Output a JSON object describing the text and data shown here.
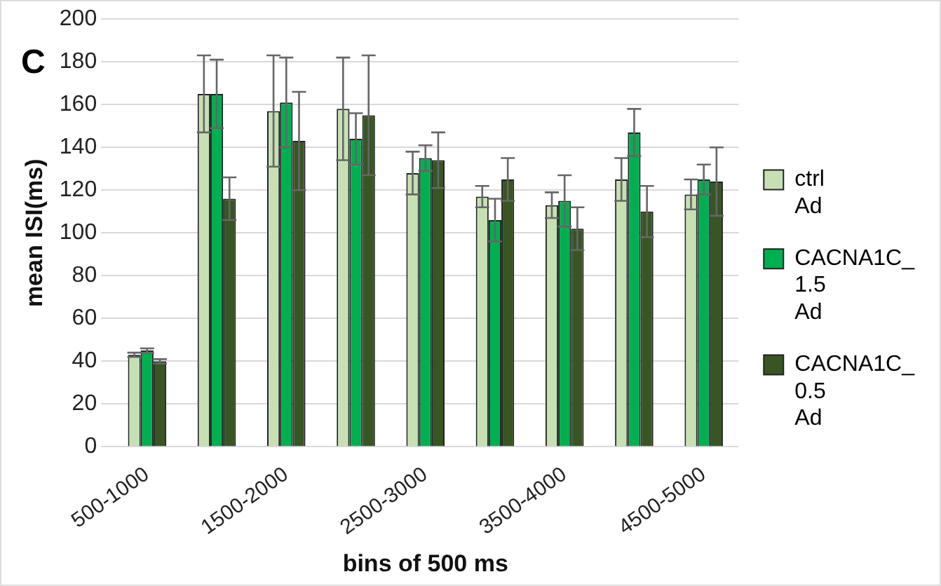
{
  "chart_data": {
    "type": "bar",
    "title": "C",
    "xlabel": "bins of 500 ms",
    "ylabel": "mean ISI(ms)",
    "categories": [
      "500-1000",
      null,
      "1500-2000",
      null,
      "2500-3000",
      null,
      "3500-4000",
      null,
      "4500-5000"
    ],
    "series": [
      {
        "name": "ctrl Ad",
        "color": "#c6e0b4",
        "values": [
          43,
          165,
          157,
          158,
          128,
          117,
          113,
          125,
          118
        ],
        "errors": [
          1,
          18,
          26,
          24,
          10,
          5,
          6,
          10,
          7
        ]
      },
      {
        "name": "CACNA1C_ 1.5 Ad",
        "color": "#00b050",
        "values": [
          45,
          165,
          161,
          144,
          135,
          106,
          115,
          147,
          125
        ],
        "errors": [
          1,
          16,
          21,
          12,
          6,
          10,
          12,
          11,
          7
        ]
      },
      {
        "name": "CACNA1C_ 0.5 Ad",
        "color": "#375623",
        "values": [
          40,
          116,
          143,
          155,
          134,
          125,
          102,
          110,
          124
        ],
        "errors": [
          1,
          10,
          23,
          28,
          13,
          10,
          10,
          12,
          16
        ]
      }
    ],
    "ylim": [
      0,
      200
    ],
    "yticks": [
      0,
      20,
      40,
      60,
      80,
      100,
      120,
      140,
      160,
      180,
      200
    ],
    "grid": "y",
    "legend": "right"
  }
}
